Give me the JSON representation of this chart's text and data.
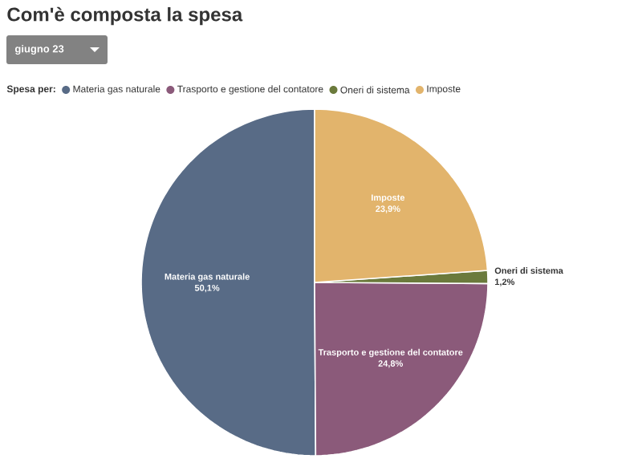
{
  "chart_data": {
    "type": "pie",
    "title": "Com'è composta la spesa",
    "subtitle": "giugno 23",
    "legend_title": "Spesa per:",
    "legend": "top left",
    "categories": [
      "Materia gas naturale",
      "Trasporto e gestione del contatore",
      "Oneri di sistema",
      "Imposte"
    ],
    "values": [
      50.1,
      24.8,
      1.2,
      23.9
    ],
    "value_labels": [
      "50,1%",
      "24,8%",
      "1,2%",
      "23,9%"
    ],
    "colors": [
      "#586b86",
      "#8b5a7a",
      "#6b7a3c",
      "#e2b46c"
    ]
  }
}
